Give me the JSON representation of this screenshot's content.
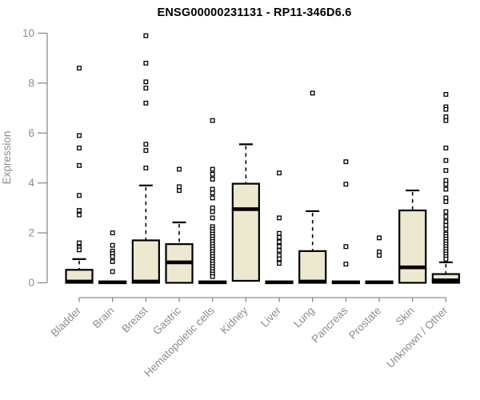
{
  "header": {
    "title": "ENSG00000231131 - RP11-346D6.6"
  },
  "colors": {
    "box_fill": "#EDE8D0",
    "box_stroke": "#000000",
    "axis_gray": "#8C8C8C",
    "background": "#FFFFFF",
    "title": "#000000"
  },
  "chart_data": {
    "type": "boxplot",
    "title": "ENSG00000231131 - RP11-346D6.6",
    "xlabel": "",
    "ylabel": "Expression",
    "ylim": [
      0,
      10
    ],
    "yticks": [
      0,
      2,
      4,
      6,
      8,
      10
    ],
    "grid": false,
    "legend": "none",
    "categories": [
      "Bladder",
      "Brain",
      "Breast",
      "Gastric",
      "Hematopoietic cells",
      "Kidney",
      "Liver",
      "Lung",
      "Pancreas",
      "Prostate",
      "Skin",
      "Unknown / Other"
    ],
    "series": [
      {
        "name": "Bladder",
        "q1": 0,
        "median": 0.05,
        "q3": 0.52,
        "whisker_low": 0,
        "whisker_high": 0.95,
        "outliers": [
          8.6,
          5.9,
          5.4,
          4.7,
          3.5,
          2.9,
          2.72,
          1.6,
          1.42,
          1.32
        ]
      },
      {
        "name": "Brain",
        "q1": 0,
        "median": 0.02,
        "q3": 0.05,
        "whisker_low": 0,
        "whisker_high": 0.05,
        "outliers": [
          2.0,
          1.5,
          1.27,
          1.17,
          1.05,
          0.85,
          0.45
        ]
      },
      {
        "name": "Breast",
        "q1": 0,
        "median": 0.05,
        "q3": 1.7,
        "whisker_low": 0,
        "whisker_high": 3.9,
        "outliers": [
          9.9,
          8.8,
          8.05,
          7.8,
          7.2,
          5.55,
          5.3,
          4.6
        ]
      },
      {
        "name": "Gastric",
        "q1": 0,
        "median": 0.82,
        "q3": 1.55,
        "whisker_low": 0,
        "whisker_high": 2.42,
        "outliers": [
          4.55,
          3.85,
          3.7
        ]
      },
      {
        "name": "Hematopoietic cells",
        "q1": 0,
        "median": 0.02,
        "q3": 0.05,
        "whisker_low": 0,
        "whisker_high": 0.05,
        "outliers": [
          6.5,
          4.55,
          4.35,
          4.15,
          3.75,
          3.6,
          3.4,
          3.0,
          2.85,
          2.6,
          2.25,
          2.15,
          2.05,
          1.95,
          1.85,
          1.75,
          1.65,
          1.55,
          1.45,
          1.35,
          1.25,
          1.15,
          1.05,
          0.95,
          0.85,
          0.75,
          0.65,
          0.55,
          0.45,
          0.35,
          0.25
        ]
      },
      {
        "name": "Kidney",
        "q1": 0.08,
        "median": 2.95,
        "q3": 3.97,
        "whisker_low": 0.08,
        "whisker_high": 5.55,
        "outliers": []
      },
      {
        "name": "Liver",
        "q1": 0,
        "median": 0.02,
        "q3": 0.05,
        "whisker_low": 0,
        "whisker_high": 0.05,
        "outliers": [
          4.4,
          2.6,
          1.98,
          1.82,
          1.64,
          1.46,
          1.3,
          1.1,
          0.96,
          0.78
        ]
      },
      {
        "name": "Lung",
        "q1": 0,
        "median": 0.05,
        "q3": 1.27,
        "whisker_low": 0,
        "whisker_high": 2.87,
        "outliers": [
          7.6
        ]
      },
      {
        "name": "Pancreas",
        "q1": 0,
        "median": 0.02,
        "q3": 0.05,
        "whisker_low": 0,
        "whisker_high": 0.05,
        "outliers": [
          4.85,
          3.95,
          1.45,
          0.75
        ]
      },
      {
        "name": "Prostate",
        "q1": 0,
        "median": 0.02,
        "q3": 0.05,
        "whisker_low": 0,
        "whisker_high": 0.05,
        "outliers": [
          1.8,
          1.24,
          1.1
        ]
      },
      {
        "name": "Skin",
        "q1": 0,
        "median": 0.62,
        "q3": 2.9,
        "whisker_low": 0,
        "whisker_high": 3.7,
        "outliers": []
      },
      {
        "name": "Unknown / Other",
        "q1": 0,
        "median": 0.1,
        "q3": 0.35,
        "whisker_low": 0,
        "whisker_high": 0.82,
        "outliers": [
          7.55,
          7.05,
          6.95,
          6.65,
          6.5,
          5.4,
          4.9,
          4.5,
          4.1,
          3.95,
          3.75,
          3.4,
          3.25,
          2.85,
          2.65,
          2.45,
          2.3,
          2.15,
          1.95,
          1.85,
          1.75,
          1.65,
          1.55,
          1.45,
          1.35,
          1.25,
          1.15,
          1.05,
          0.95
        ]
      }
    ]
  }
}
